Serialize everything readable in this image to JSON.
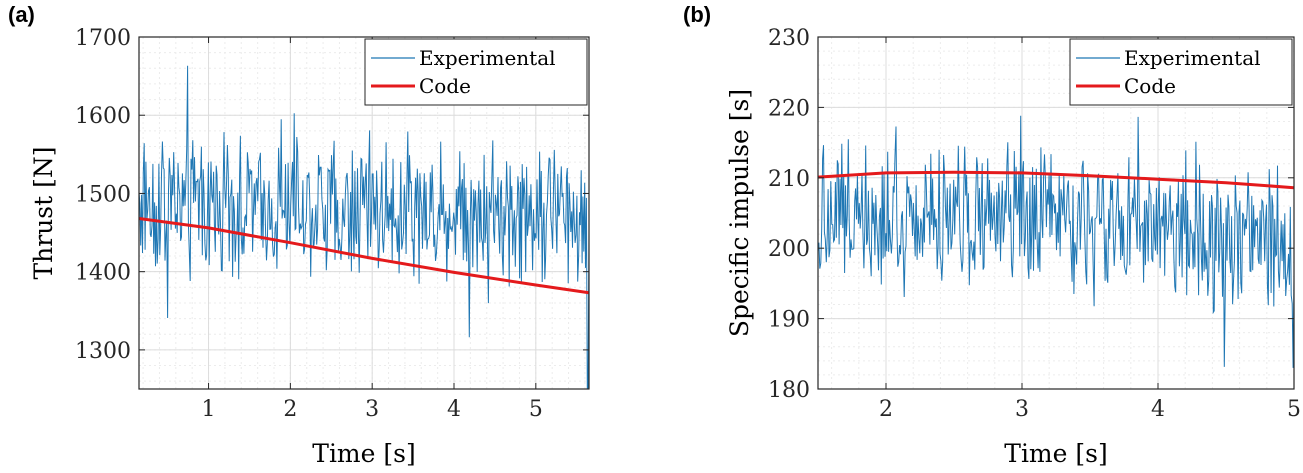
{
  "colors": {
    "experimental": "#1f77b4",
    "code": "#e41a1c"
  },
  "chart_data": [
    {
      "type": "line",
      "panel": "(a)",
      "xlabel": "Time [s]",
      "ylabel": "Thrust [N]",
      "xlim": [
        0.15,
        5.65
      ],
      "ylim": [
        1250,
        1700
      ],
      "xticks": [
        1,
        2,
        3,
        4,
        5
      ],
      "yticks": [
        1300,
        1400,
        1500,
        1600,
        1700
      ],
      "grid": true,
      "minor_grid": true,
      "legend": "top-right",
      "experimental": {
        "mean_start": 1490,
        "mean_end": 1475,
        "amplitude": 70,
        "spike_min": 1250
      },
      "series": [
        {
          "name": "Experimental",
          "style": "noisy"
        },
        {
          "name": "Code",
          "x": [
            0.15,
            1.0,
            2.0,
            3.0,
            4.0,
            5.0,
            5.65
          ],
          "y": [
            1468,
            1456,
            1437,
            1417,
            1399,
            1383,
            1373
          ]
        }
      ]
    },
    {
      "type": "line",
      "panel": "(b)",
      "xlabel": "Time [s]",
      "ylabel": "Specific impulse [s]",
      "xlim": [
        1.5,
        5.0
      ],
      "ylim": [
        180,
        230
      ],
      "xticks": [
        2,
        3,
        4,
        5
      ],
      "yticks": [
        180,
        190,
        200,
        210,
        220,
        230
      ],
      "grid": true,
      "minor_grid": true,
      "legend": "top-right",
      "experimental": {
        "mean_start": 206,
        "mean_end": 201,
        "amplitude": 8,
        "spike_min": 183
      },
      "series": [
        {
          "name": "Experimental",
          "style": "noisy"
        },
        {
          "name": "Code",
          "x": [
            1.5,
            2.0,
            2.5,
            3.0,
            3.5,
            4.0,
            4.5,
            5.0
          ],
          "y": [
            210.1,
            210.7,
            210.8,
            210.7,
            210.3,
            209.8,
            209.3,
            208.6
          ]
        }
      ]
    }
  ]
}
